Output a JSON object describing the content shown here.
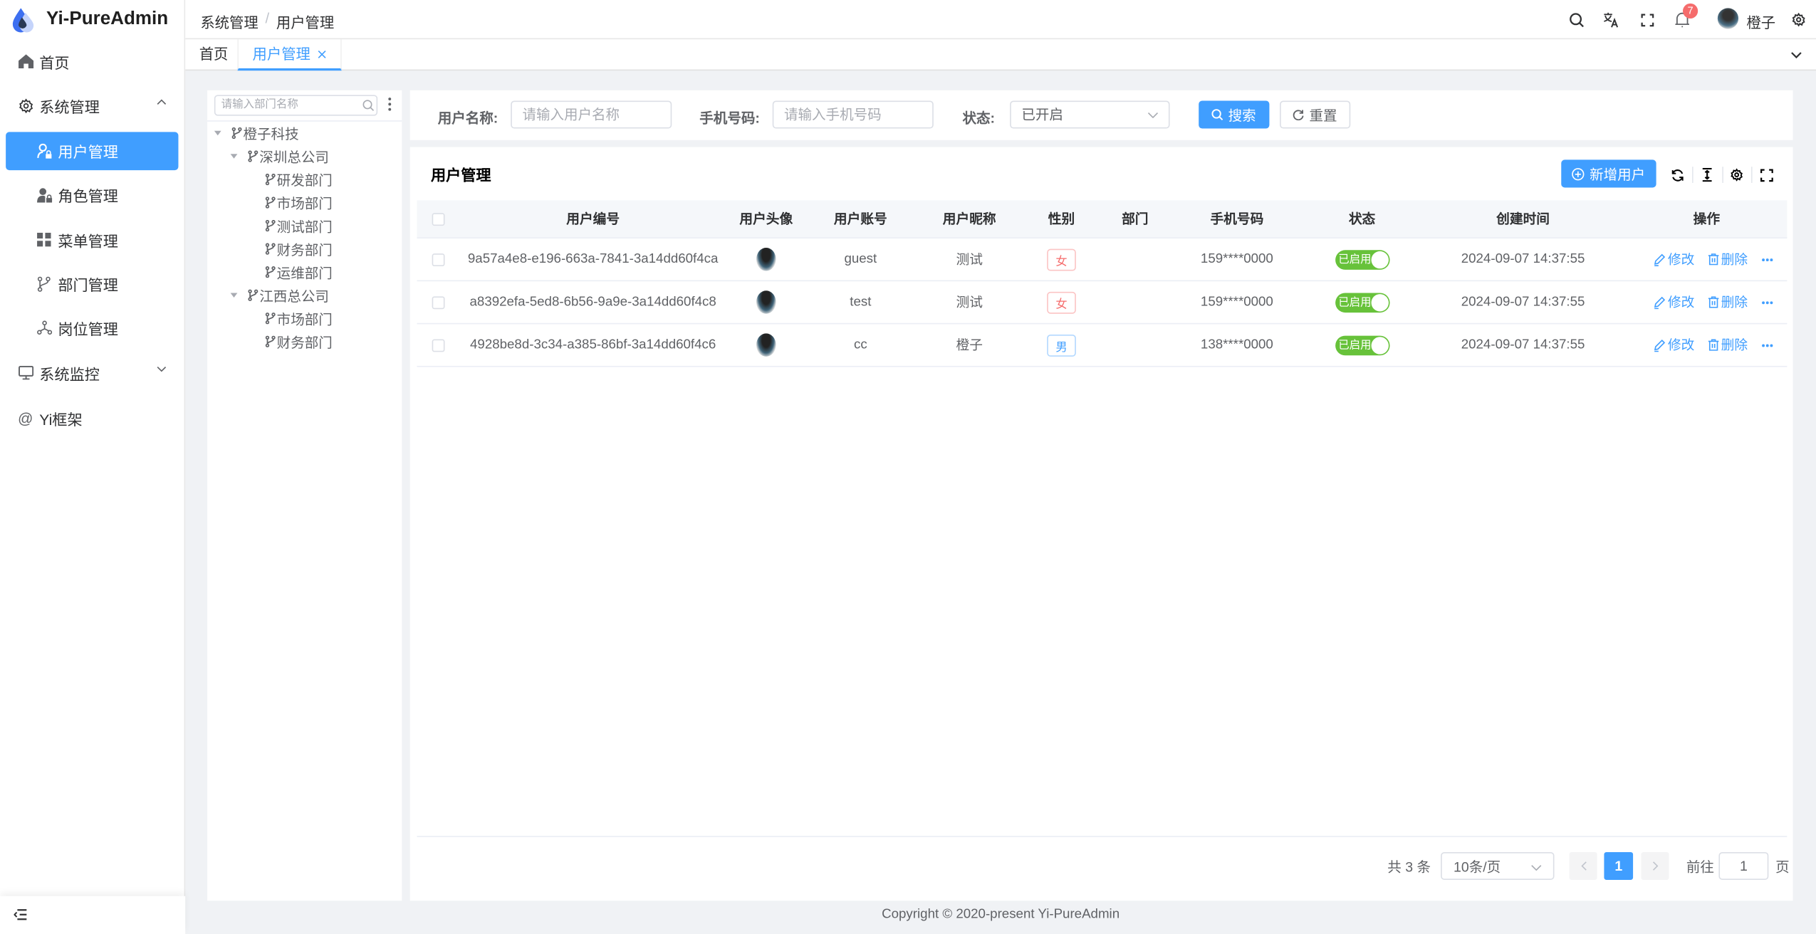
{
  "app": {
    "title": "Yi-PureAdmin",
    "brand_color": "#409eff"
  },
  "sidebar": {
    "items": [
      {
        "label": "首页",
        "icon": "home-icon"
      },
      {
        "label": "系统管理",
        "icon": "gear-icon",
        "expanded": true
      },
      {
        "label": "用户管理",
        "icon": "user-lock-icon",
        "active": true
      },
      {
        "label": "角色管理",
        "icon": "role-icon"
      },
      {
        "label": "菜单管理",
        "icon": "grid-icon"
      },
      {
        "label": "部门管理",
        "icon": "branch-icon"
      },
      {
        "label": "岗位管理",
        "icon": "nodes-icon"
      },
      {
        "label": "系统监控",
        "icon": "monitor-icon",
        "expanded": false
      },
      {
        "label": "Yi框架",
        "icon": "at-icon"
      }
    ]
  },
  "header": {
    "breadcrumb": [
      "系统管理",
      "用户管理"
    ],
    "notification_count": "7",
    "username": "橙子"
  },
  "tabs": [
    {
      "label": "首页"
    },
    {
      "label": "用户管理",
      "active": true
    }
  ],
  "tree": {
    "search_placeholder": "请输入部门名称",
    "nodes": [
      {
        "label": "橙子科技",
        "level": 0,
        "expandable": true
      },
      {
        "label": "深圳总公司",
        "level": 1,
        "expandable": true
      },
      {
        "label": "研发部门",
        "level": 2
      },
      {
        "label": "市场部门",
        "level": 2
      },
      {
        "label": "测试部门",
        "level": 2
      },
      {
        "label": "财务部门",
        "level": 2
      },
      {
        "label": "运维部门",
        "level": 2
      },
      {
        "label": "江西总公司",
        "level": 1,
        "expandable": true
      },
      {
        "label": "市场部门",
        "level": 2
      },
      {
        "label": "财务部门",
        "level": 2
      }
    ]
  },
  "search": {
    "username_label": "用户名称:",
    "username_placeholder": "请输入用户名称",
    "phone_label": "手机号码:",
    "phone_placeholder": "请输入手机号码",
    "status_label": "状态:",
    "status_value": "已开启",
    "search_button": "搜索",
    "reset_button": "重置"
  },
  "table": {
    "title": "用户管理",
    "add_button": "新增用户",
    "columns": [
      "用户编号",
      "用户头像",
      "用户账号",
      "用户昵称",
      "性别",
      "部门",
      "手机号码",
      "状态",
      "创建时间",
      "操作"
    ],
    "rows": [
      {
        "id": "9a57a4e8-e196-663a-7841-3a14dd60f4ca",
        "account": "guest",
        "nickname": "测试",
        "gender": "女",
        "dept": "",
        "phone": "159****0000",
        "status": "已启用",
        "created": "2024-09-07 14:37:55"
      },
      {
        "id": "a8392efa-5ed8-6b56-9a9e-3a14dd60f4c8",
        "account": "test",
        "nickname": "测试",
        "gender": "女",
        "dept": "",
        "phone": "159****0000",
        "status": "已启用",
        "created": "2024-09-07 14:37:55"
      },
      {
        "id": "4928be8d-3c34-a385-86bf-3a14dd60f4c6",
        "account": "cc",
        "nickname": "橙子",
        "gender": "男",
        "dept": "",
        "phone": "138****0000",
        "status": "已启用",
        "created": "2024-09-07 14:37:55"
      }
    ],
    "edit_label": "修改",
    "delete_label": "删除"
  },
  "pagination": {
    "total": "共 3 条",
    "page_size": "10条/页",
    "current_page": "1",
    "goto_label": "前往",
    "goto_value": "1",
    "page_suffix": "页"
  },
  "footer": {
    "copyright": "Copyright © 2020-present Yi-PureAdmin"
  }
}
